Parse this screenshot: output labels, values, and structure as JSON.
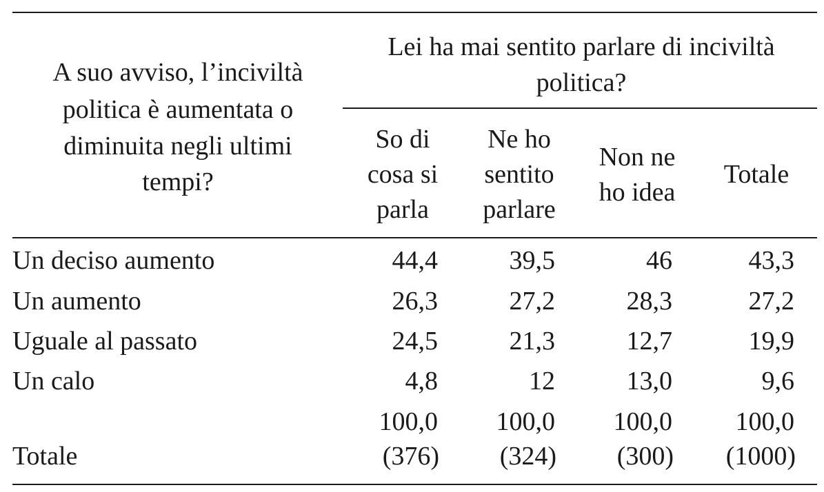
{
  "header": {
    "row_header": [
      "A suo avviso, l’inciviltà",
      "politica è aumentata o",
      "diminuita negli ultimi",
      "tempi?"
    ],
    "group": [
      "Lei ha mai sentito parlare di inciviltà",
      "politica?"
    ],
    "columns": [
      [
        "So di",
        "cosa si",
        "parla"
      ],
      [
        "Ne ho",
        "sentito",
        "parlare"
      ],
      [
        "Non ne",
        "ho idea"
      ],
      [
        "Totale"
      ]
    ]
  },
  "table": {
    "rows": [
      [
        "Un deciso aumento",
        "44,4",
        "39,5",
        "46",
        "43,3"
      ],
      [
        "Un aumento",
        "26,3",
        "27,2",
        "28,3",
        "27,2"
      ],
      [
        "Uguale al passato",
        "24,5",
        "21,3",
        "12,7",
        "19,9"
      ],
      [
        "Un calo",
        "4,8",
        "12",
        "13,0",
        "9,6"
      ]
    ],
    "total": {
      "label": "Totale",
      "percent": [
        "100,0",
        "100,0",
        "100,0",
        "100,0"
      ],
      "n": [
        "(376)",
        "(324)",
        "(300)",
        "(1000)"
      ]
    }
  }
}
